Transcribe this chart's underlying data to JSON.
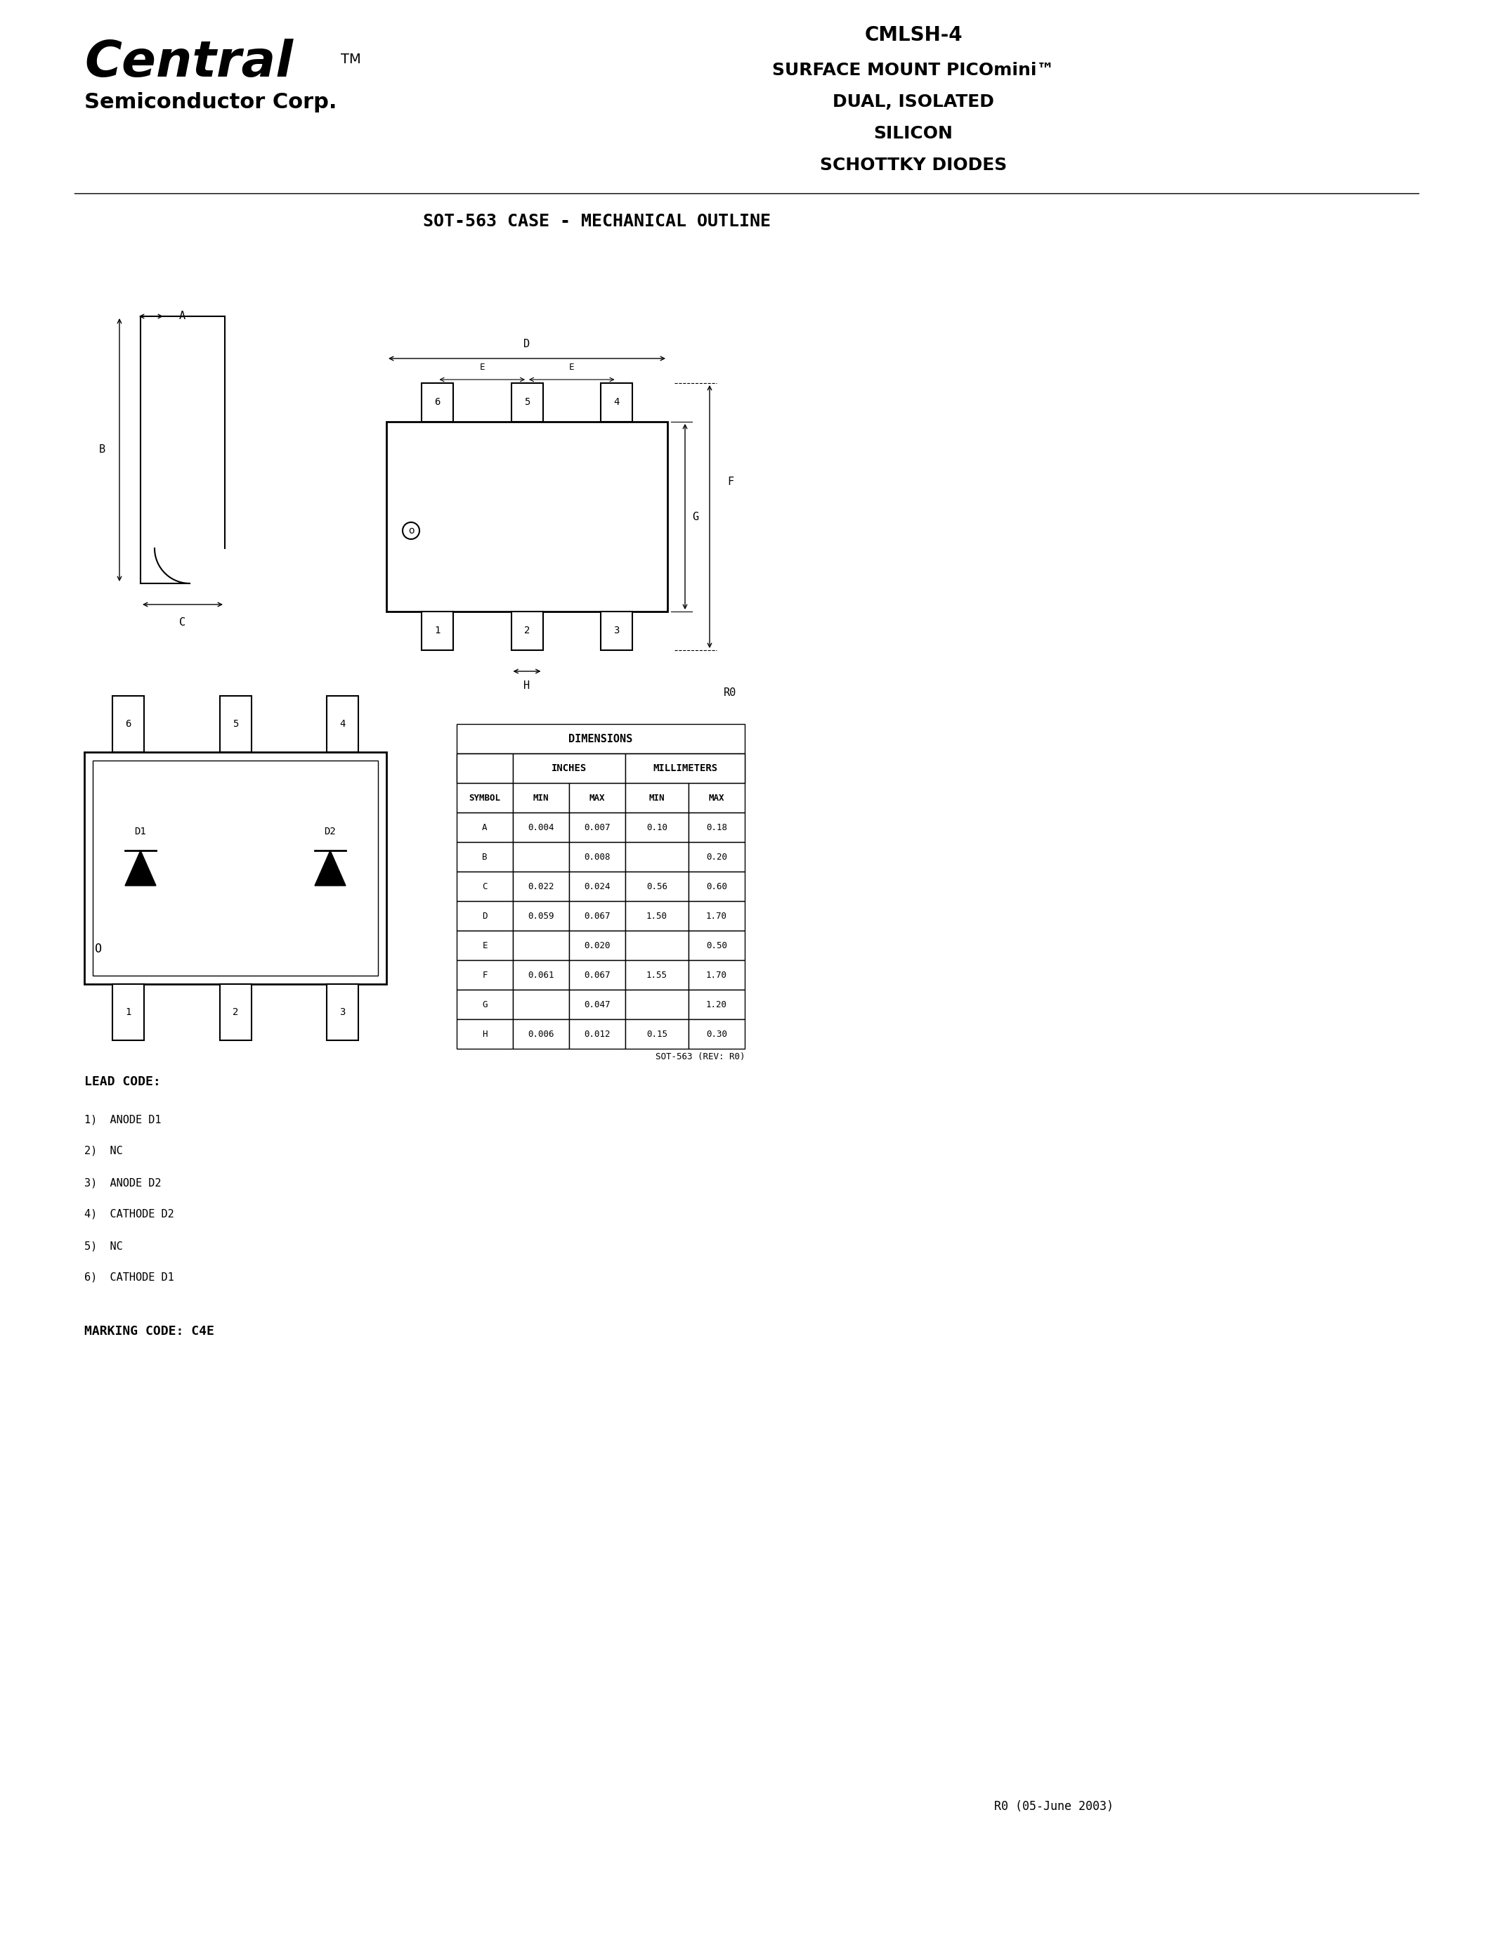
{
  "title_part": "CMLSH-4",
  "title_line1": "SURFACE MOUNT PICOmini™",
  "title_line2": "DUAL, ISOLATED",
  "title_line3": "SILICON",
  "title_line4": "SCHOTTKY DIODES",
  "company_name": "Central",
  "company_sub": "Semiconductor Corp.",
  "tm_symbol": "TM",
  "section_title": "SOT-563 CASE - MECHANICAL OUTLINE",
  "lead_code_title": "LEAD CODE:",
  "lead_codes": [
    "1)  ANODE D1",
    "2)  NC",
    "3)  ANODE D2",
    "4)  CATHODE D2",
    "5)  NC",
    "6)  CATHODE D1"
  ],
  "marking_code": "MARKING CODE: C4E",
  "revision": "R0 (05-June 2003)",
  "table_title": "DIMENSIONS",
  "table_headers": [
    "",
    "INCHES",
    "",
    "MILLIMETERS",
    ""
  ],
  "table_subheaders": [
    "SYMBOL",
    "MIN",
    "MAX",
    "MIN",
    "MAX"
  ],
  "table_rows": [
    [
      "A",
      "0.004",
      "0.007",
      "0.10",
      "0.18"
    ],
    [
      "B",
      "",
      "0.008",
      "",
      "0.20"
    ],
    [
      "C",
      "0.022",
      "0.024",
      "0.56",
      "0.60"
    ],
    [
      "D",
      "0.059",
      "0.067",
      "1.50",
      "1.70"
    ],
    [
      "E",
      "",
      "0.020",
      "",
      "0.50"
    ],
    [
      "F",
      "0.061",
      "0.067",
      "1.55",
      "1.70"
    ],
    [
      "G",
      "",
      "0.047",
      "",
      "1.20"
    ],
    [
      "H",
      "0.006",
      "0.012",
      "0.15",
      "0.30"
    ]
  ],
  "table_footer": "SOT-563 (REV: R0)",
  "bg_color": "#ffffff",
  "line_color": "#000000",
  "text_color": "#000000"
}
